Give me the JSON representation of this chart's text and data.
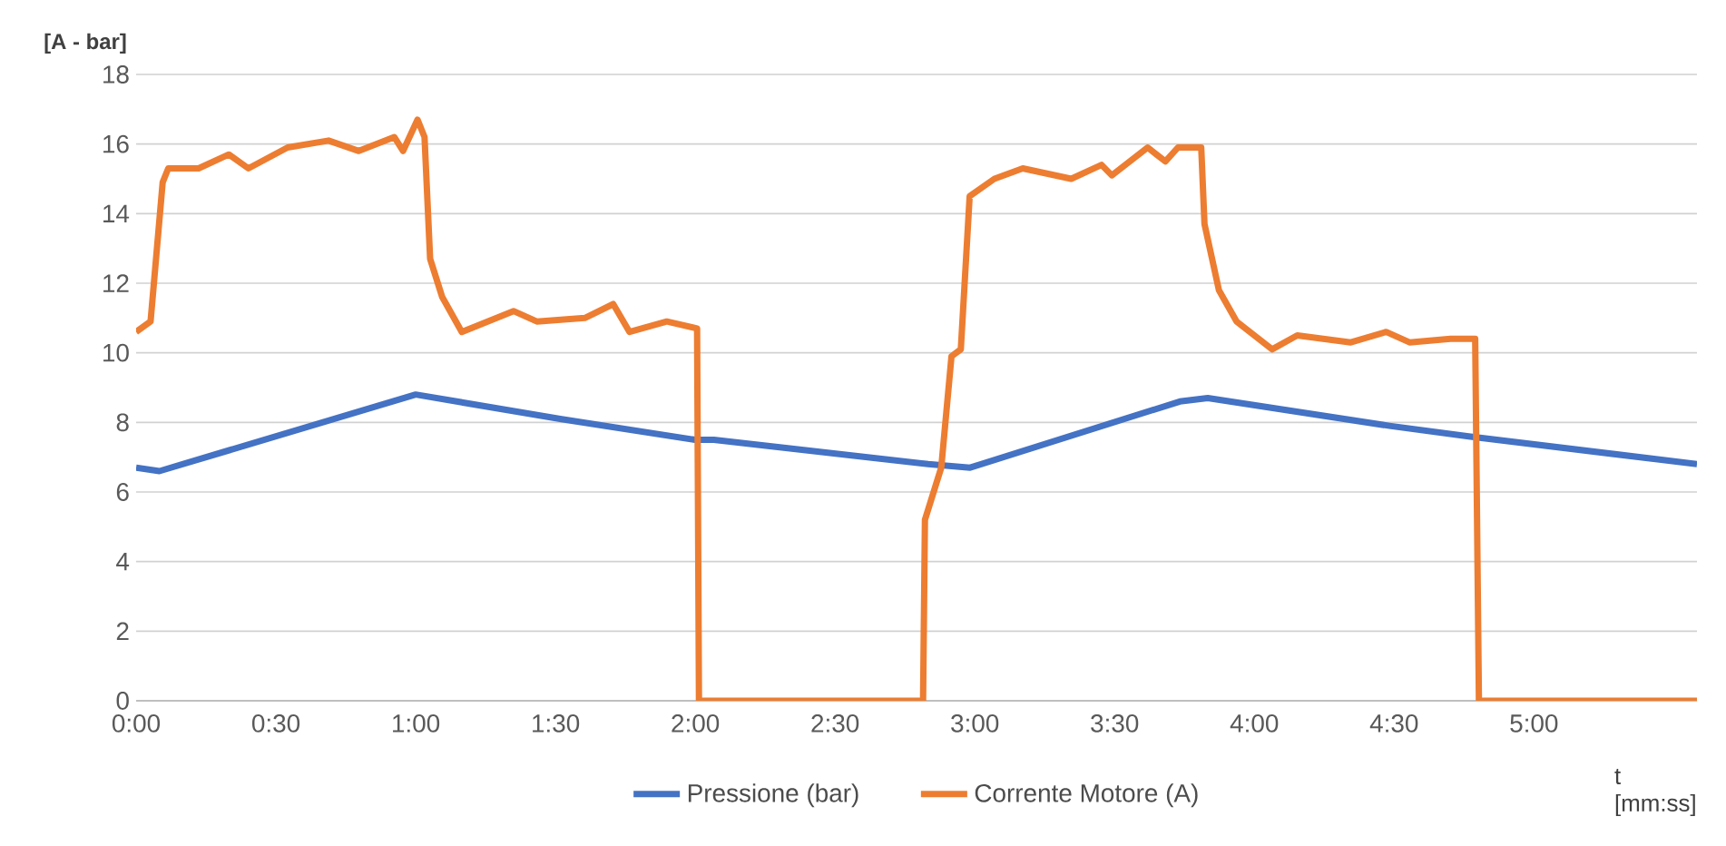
{
  "chart_data": {
    "type": "line",
    "xlabel": "t [mm:ss]",
    "ylabel": "[A - bar]",
    "xlim": [
      0,
      335
    ],
    "ylim": [
      0,
      18
    ],
    "xticks": [
      {
        "value": 0,
        "label": "0:00"
      },
      {
        "value": 30,
        "label": "0:30"
      },
      {
        "value": 60,
        "label": "1:00"
      },
      {
        "value": 90,
        "label": "1:30"
      },
      {
        "value": 120,
        "label": "2:00"
      },
      {
        "value": 150,
        "label": "2:30"
      },
      {
        "value": 180,
        "label": "3:00"
      },
      {
        "value": 210,
        "label": "3:30"
      },
      {
        "value": 240,
        "label": "4:00"
      },
      {
        "value": 270,
        "label": "4:30"
      },
      {
        "value": 300,
        "label": "5:00"
      }
    ],
    "yticks": [
      0,
      2,
      4,
      6,
      8,
      10,
      12,
      14,
      16,
      18
    ],
    "grid": "y",
    "legend": "bottom",
    "marker": "none",
    "line_style": "solid",
    "series": [
      {
        "name": "Pressione (bar)",
        "color": "#4472c4",
        "x": [
          0,
          5,
          60,
          91,
          120,
          124,
          170,
          179,
          224,
          230,
          269,
          286,
          335
        ],
        "values": [
          6.7,
          6.6,
          8.8,
          8.1,
          7.5,
          7.5,
          6.8,
          6.7,
          8.6,
          8.7,
          7.9,
          7.6,
          6.8
        ]
      },
      {
        "name": "Corrente Motore (A)",
        "color": "#ed7d31",
        "x": [
          0,
          3.1,
          5.7,
          6.9,
          13.4,
          19.9,
          24.1,
          32.5,
          41.3,
          47.8,
          55.4,
          57.3,
          60.4,
          61.9,
          63.1,
          65.7,
          69.9,
          81.0,
          86.0,
          96.3,
          102.4,
          105.9,
          113.9,
          120.4,
          120.8,
          168.9,
          169.3,
          172.8,
          175.0,
          177.0,
          178.9,
          184.2,
          190.3,
          200.7,
          207.2,
          209.4,
          217.1,
          220.9,
          223.6,
          228.6,
          229.3,
          232.4,
          236.2,
          243.8,
          249.2,
          260.7,
          268.3,
          273.3,
          282.1,
          287.4,
          288.2,
          335
        ],
        "values": [
          10.6,
          10.9,
          14.9,
          15.3,
          15.3,
          15.7,
          15.3,
          15.9,
          16.1,
          15.8,
          16.2,
          15.8,
          16.7,
          16.2,
          12.7,
          11.6,
          10.6,
          11.2,
          10.9,
          11.0,
          11.4,
          10.6,
          10.9,
          10.7,
          0,
          0,
          5.2,
          6.7,
          9.9,
          10.1,
          14.5,
          15.0,
          15.3,
          15.0,
          15.4,
          15.1,
          15.9,
          15.5,
          15.9,
          15.9,
          13.7,
          11.8,
          10.9,
          10.1,
          10.5,
          10.3,
          10.6,
          10.3,
          10.4,
          10.4,
          0,
          0
        ]
      }
    ]
  }
}
